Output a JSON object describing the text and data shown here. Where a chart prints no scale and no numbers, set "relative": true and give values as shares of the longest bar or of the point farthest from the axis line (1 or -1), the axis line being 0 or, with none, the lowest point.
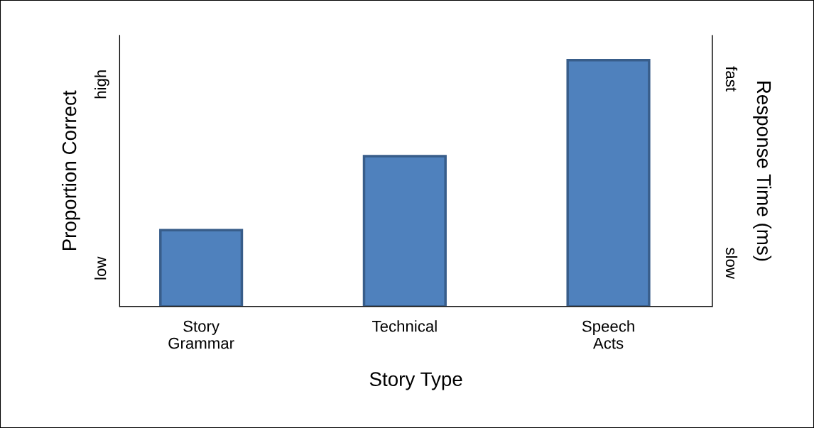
{
  "chart_data": {
    "type": "bar",
    "relative": true,
    "categories": [
      "Story\nGrammar",
      "Technical",
      "Speech\nActs"
    ],
    "values": [
      0.31,
      0.61,
      1
    ],
    "color": "#4f81bd",
    "xlabel": "Story Type",
    "ylabel": "Proportion Correct",
    "y2label": "Response Time (ms)",
    "annotations": [
      "low",
      "high",
      "slow",
      "fast"
    ],
    "grid": false
  }
}
